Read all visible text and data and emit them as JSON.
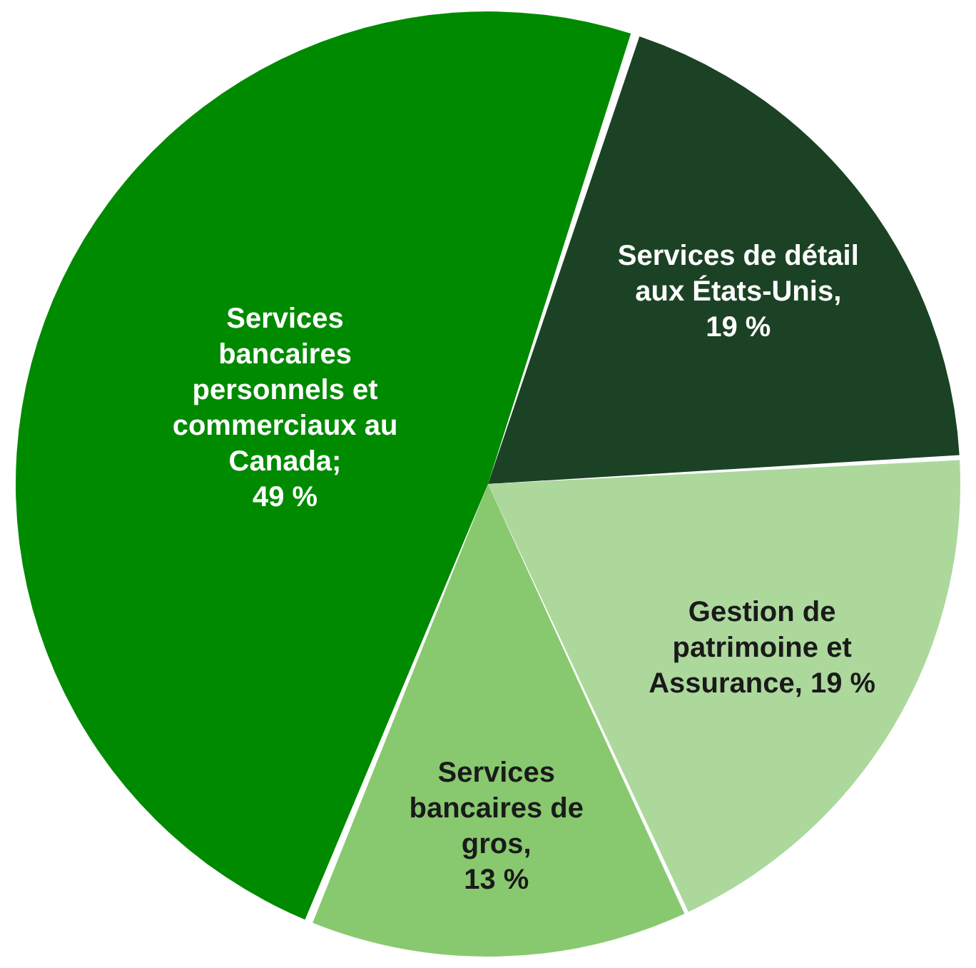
{
  "chart_data": {
    "type": "pie",
    "categories": [
      "Services de détail aux États-Unis",
      "Gestion de patrimoine et Assurance",
      "Services bancaires de gros",
      "Services bancaires personnels et commerciaux au Canada"
    ],
    "values": [
      19,
      19,
      13,
      49
    ],
    "value_labels": [
      ", 19 %",
      ", 19 %",
      ", 13 %",
      "; 49 %"
    ],
    "colors": [
      "#1b4224",
      "#acd89c",
      "#88c96f",
      "#008a00"
    ],
    "legend": false
  }
}
